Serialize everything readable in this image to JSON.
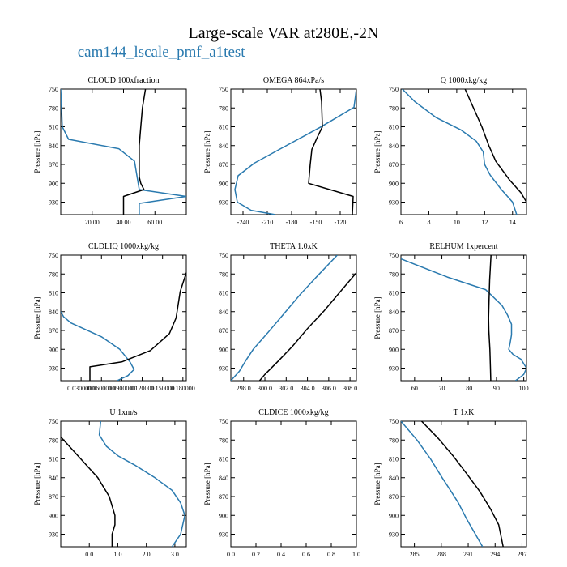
{
  "figure": {
    "title": "Large-scale VAR at280E,-2N",
    "legend_label": "cam144_lscale_pmf_a1test",
    "colors": {
      "run": "#2a7aaf",
      "obs": "#000000"
    }
  },
  "chart_data": [
    {
      "type": "line",
      "title": "CLOUD  100xfraction",
      "ylabel": "Pressure [hPa]",
      "xlim": [
        0,
        80
      ],
      "ylim": [
        750,
        950
      ],
      "y_inverted": true,
      "xticks": [
        20,
        40,
        60
      ],
      "xtick_labels": [
        "20.00",
        "40.00",
        "60.00"
      ],
      "yticks": [
        750,
        780,
        810,
        840,
        870,
        900,
        930
      ],
      "series": [
        {
          "color": "blue",
          "x": [
            0,
            1,
            5,
            37,
            47,
            48,
            50,
            80,
            50,
            50
          ],
          "y": [
            750,
            810,
            830,
            845,
            865,
            880,
            910,
            921,
            932,
            950
          ]
        },
        {
          "color": "black",
          "x": [
            54,
            52,
            51,
            50,
            50,
            50,
            51,
            53,
            40,
            40
          ],
          "y": [
            750,
            780,
            810,
            840,
            870,
            890,
            900,
            910,
            921,
            950
          ]
        }
      ]
    },
    {
      "type": "line",
      "title": "OMEGA  864xPa/s",
      "ylabel": "Pressure [hPa]",
      "xlim": [
        -255,
        -100
      ],
      "ylim": [
        750,
        950
      ],
      "y_inverted": true,
      "xticks": [
        -240,
        -210,
        -180,
        -150,
        -120
      ],
      "xtick_labels": [
        "-240",
        "-210",
        "-180",
        "-150",
        "-120"
      ],
      "yticks": [
        750,
        780,
        810,
        840,
        870,
        900,
        930
      ],
      "series": [
        {
          "color": "blue",
          "x": [
            -100,
            -103,
            -145,
            -195,
            -226,
            -246,
            -250,
            -247,
            -230,
            -200
          ],
          "y": [
            750,
            779,
            811,
            846,
            868,
            888,
            910,
            930,
            943,
            950
          ]
        },
        {
          "color": "black",
          "x": [
            -145,
            -143,
            -142,
            -148,
            -155,
            -157,
            -159,
            -104,
            -105
          ],
          "y": [
            750,
            770,
            810,
            826,
            846,
            870,
            900,
            921,
            950
          ]
        }
      ]
    },
    {
      "type": "line",
      "title": "Q  1000xkg/kg",
      "ylabel": "Pressure [hPa]",
      "xlim": [
        6,
        15
      ],
      "ylim": [
        750,
        950
      ],
      "y_inverted": true,
      "xticks": [
        6,
        8,
        10,
        12,
        14
      ],
      "xtick_labels": [
        "6",
        "8",
        "10",
        "12",
        "14"
      ],
      "yticks": [
        750,
        780,
        810,
        840,
        870,
        900,
        930
      ],
      "series": [
        {
          "color": "blue",
          "x": [
            6.1,
            7.0,
            8.5,
            10.3,
            11.4,
            11.9,
            12.0,
            12.4,
            13.2,
            14.0,
            14.3
          ],
          "y": [
            750,
            770,
            795,
            815,
            833,
            850,
            870,
            887,
            910,
            930,
            950
          ]
        },
        {
          "color": "black",
          "x": [
            10.6,
            11.2,
            11.8,
            12.3,
            12.8,
            13.4,
            13.8,
            14.6,
            15.0,
            15.0
          ],
          "y": [
            750,
            780,
            810,
            840,
            865,
            883,
            895,
            915,
            930,
            950
          ]
        }
      ]
    },
    {
      "type": "line",
      "title": "CLDLIQ  1000xkg/kg",
      "ylabel": "Pressure [hPa]",
      "xlim": [
        0,
        0.185
      ],
      "ylim": [
        750,
        950
      ],
      "y_inverted": true,
      "xticks": [
        0.03,
        0.06,
        0.09,
        0.12,
        0.15,
        0.18
      ],
      "xtick_labels": [
        "0.0300000",
        "0.0600000",
        "0.0900000",
        "0.120000",
        "0.150000",
        "0.180000"
      ],
      "yticks": [
        750,
        780,
        810,
        840,
        870,
        900,
        930
      ],
      "series": [
        {
          "color": "blue",
          "x": [
            0,
            0.004,
            0.015,
            0.06,
            0.087,
            0.102,
            0.108,
            0.099,
            0.083
          ],
          "y": [
            840,
            848,
            858,
            880,
            900,
            920,
            932,
            942,
            950
          ]
        },
        {
          "color": "black",
          "x": [
            0.185,
            0.176,
            0.17,
            0.16,
            0.132,
            0.09,
            0.043,
            0.043
          ],
          "y": [
            778,
            808,
            850,
            875,
            902,
            920,
            928,
            950
          ]
        }
      ]
    },
    {
      "type": "line",
      "title": "THETA  1.0xK",
      "ylabel": "",
      "xlim": [
        296.8,
        308.6
      ],
      "ylim": [
        750,
        950
      ],
      "y_inverted": true,
      "xticks": [
        298,
        300,
        302,
        304,
        306,
        308
      ],
      "xtick_labels": [
        "298.0",
        "300.0",
        "302.0",
        "304.0",
        "306.0",
        "308.0"
      ],
      "yticks": [
        750,
        780,
        810,
        840,
        870,
        900,
        930
      ],
      "series": [
        {
          "color": "blue",
          "x": [
            306.8,
            305.0,
            303.3,
            301.8,
            300.3,
            298.9,
            298.2,
            297.6,
            296.8
          ],
          "y": [
            750,
            782,
            813,
            843,
            873,
            900,
            918,
            935,
            950
          ]
        },
        {
          "color": "black",
          "x": [
            308.6,
            307.1,
            305.6,
            304.0,
            302.6,
            301.3,
            300.0,
            299.5
          ],
          "y": [
            778,
            808,
            838,
            867,
            895,
            918,
            940,
            950
          ]
        }
      ]
    },
    {
      "type": "line",
      "title": "RELHUM  1xpercent",
      "ylabel": "Pressure [hPa]",
      "xlim": [
        55,
        101
      ],
      "ylim": [
        750,
        950
      ],
      "y_inverted": true,
      "xticks": [
        60,
        70,
        80,
        90,
        100
      ],
      "xtick_labels": [
        "60",
        "70",
        "80",
        "90",
        "100"
      ],
      "yticks": [
        750,
        780,
        810,
        840,
        870,
        900,
        930
      ],
      "series": [
        {
          "color": "blue",
          "x": [
            55,
            72,
            86,
            92,
            94,
            95.5,
            95.5,
            95,
            94.5,
            96,
            99,
            101,
            100,
            97
          ],
          "y": [
            756,
            785,
            805,
            830,
            845,
            860,
            877,
            890,
            900,
            908,
            916,
            930,
            940,
            950
          ]
        },
        {
          "color": "black",
          "x": [
            88,
            87.5,
            87.3,
            87.1,
            87.2,
            87.6,
            87.8,
            87.9
          ],
          "y": [
            750,
            790,
            820,
            850,
            870,
            900,
            930,
            950
          ]
        }
      ]
    },
    {
      "type": "line",
      "title": "U  1xm/s",
      "ylabel": "Pressure [hPa]",
      "xlim": [
        -1,
        3.4
      ],
      "ylim": [
        750,
        950
      ],
      "y_inverted": true,
      "xticks": [
        0,
        1,
        2,
        3
      ],
      "xtick_labels": [
        "0.0",
        "1.0",
        "2.0",
        "3.0"
      ],
      "yticks": [
        750,
        780,
        810,
        840,
        870,
        900,
        930
      ],
      "series": [
        {
          "color": "blue",
          "x": [
            0.4,
            0.35,
            0.6,
            1.0,
            1.6,
            2.3,
            2.9,
            3.2,
            3.35,
            3.2,
            2.9
          ],
          "y": [
            750,
            772,
            790,
            805,
            820,
            840,
            860,
            880,
            900,
            930,
            950
          ]
        },
        {
          "color": "black",
          "x": [
            -1,
            -0.3,
            0.3,
            0.7,
            0.9,
            0.9,
            0.8,
            0.8
          ],
          "y": [
            775,
            810,
            840,
            870,
            900,
            915,
            930,
            950
          ]
        }
      ]
    },
    {
      "type": "line",
      "title": "CLDICE  1000xkg/kg",
      "ylabel": "Pressure [hPa]",
      "xlim": [
        0,
        1
      ],
      "ylim": [
        750,
        950
      ],
      "y_inverted": true,
      "xticks": [
        0,
        0.2,
        0.4,
        0.6,
        0.8,
        1.0
      ],
      "xtick_labels": [
        "0.0",
        "0.2",
        "0.4",
        "0.6",
        "0.8",
        "1.0"
      ],
      "yticks": [
        750,
        780,
        810,
        840,
        870,
        900,
        930
      ],
      "series": []
    },
    {
      "type": "line",
      "title": "T  1xK",
      "ylabel": "Pressure [hPa]",
      "xlim": [
        283.5,
        297.5
      ],
      "ylim": [
        750,
        950
      ],
      "y_inverted": true,
      "xticks": [
        285,
        288,
        291,
        294,
        297
      ],
      "xtick_labels": [
        "285",
        "288",
        "291",
        "294",
        "297"
      ],
      "yticks": [
        750,
        780,
        810,
        840,
        870,
        900,
        930
      ],
      "series": [
        {
          "color": "blue",
          "x": [
            283.5,
            285.3,
            286.8,
            288.1,
            289.1,
            289.9,
            290.8,
            291.8,
            292.6
          ],
          "y": [
            750,
            780,
            810,
            840,
            862,
            880,
            905,
            930,
            950
          ]
        },
        {
          "color": "black",
          "x": [
            285.8,
            287.7,
            289.3,
            290.8,
            292.3,
            293.5,
            294.4,
            294.9
          ],
          "y": [
            750,
            778,
            805,
            833,
            862,
            890,
            915,
            950
          ]
        }
      ]
    }
  ]
}
